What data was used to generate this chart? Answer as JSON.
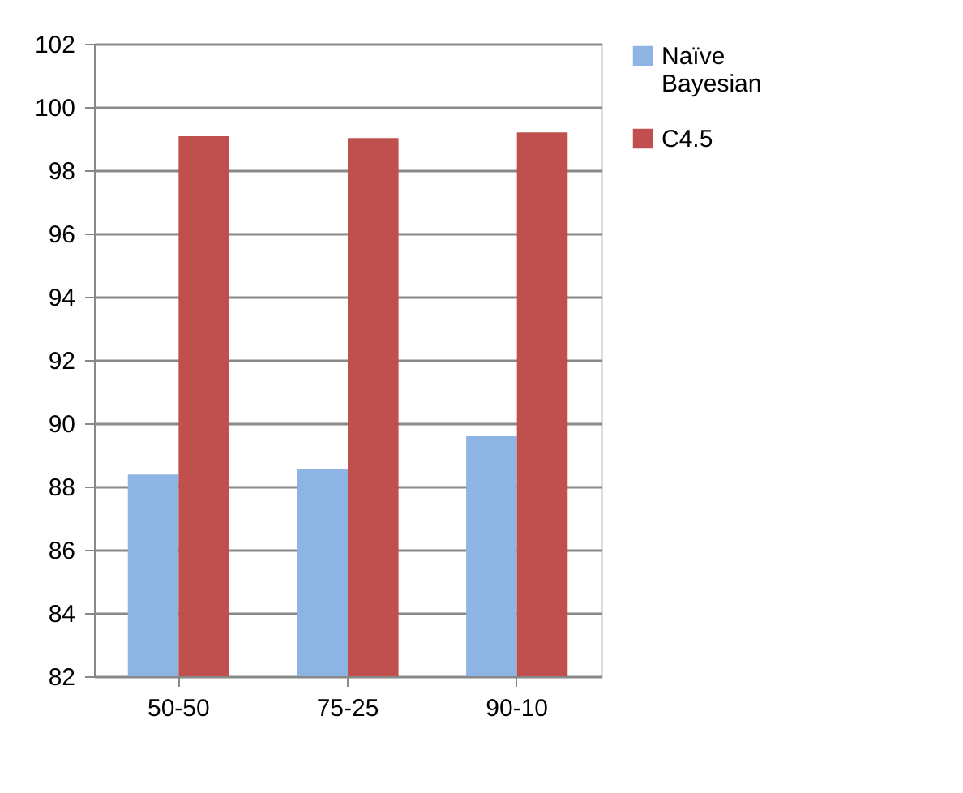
{
  "chart_data": {
    "type": "bar",
    "categories": [
      "50-50",
      "75-25",
      "90-10"
    ],
    "series": [
      {
        "name": "Naïve Bayesian",
        "color": "#8eb4e3",
        "values": [
          88.38,
          88.56,
          89.59
        ]
      },
      {
        "name": "C4.5",
        "color": "#c0504d",
        "values": [
          99.08,
          99.02,
          99.2
        ]
      }
    ],
    "ylim": [
      82,
      102
    ],
    "yticks": [
      82,
      84,
      86,
      88,
      90,
      92,
      94,
      96,
      98,
      100,
      102
    ],
    "grid": "y",
    "legend": "right"
  }
}
